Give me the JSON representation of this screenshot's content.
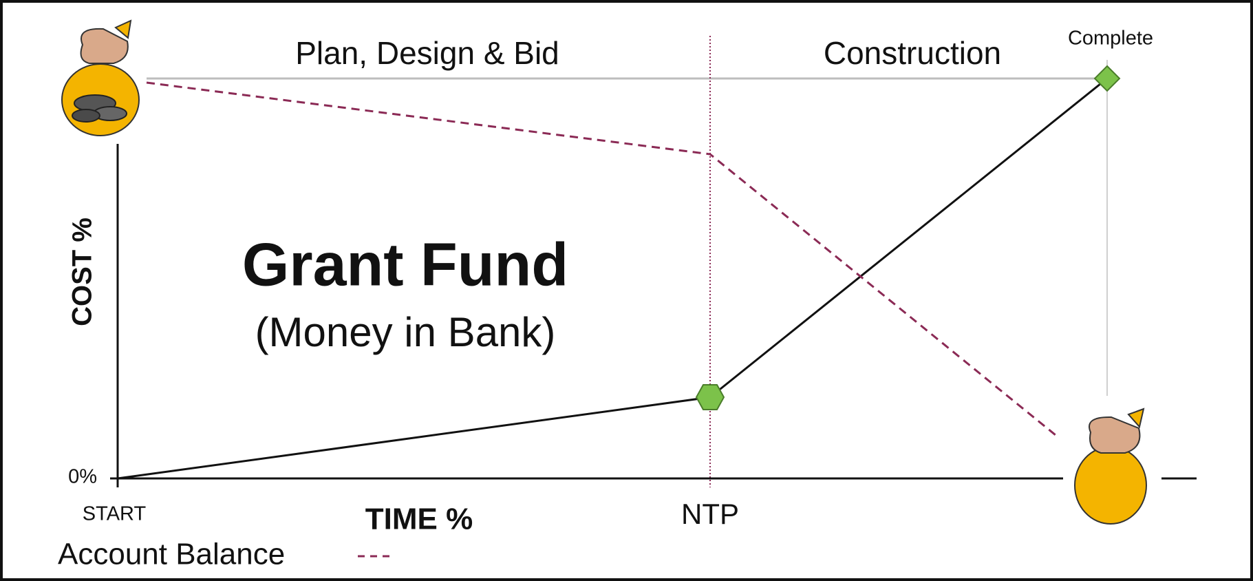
{
  "header": {
    "phase_left": "Plan, Design & Bid",
    "phase_right": "Construction",
    "milestone_end": "Complete"
  },
  "axes": {
    "y_label": "COST %",
    "y_origin": "0%",
    "x_start": "START",
    "x_label": "TIME %",
    "x_milestone": "NTP"
  },
  "center": {
    "title": "Grant Fund",
    "subtitle": "(Money in Bank)"
  },
  "legend": {
    "label": "Account Balance"
  }
}
